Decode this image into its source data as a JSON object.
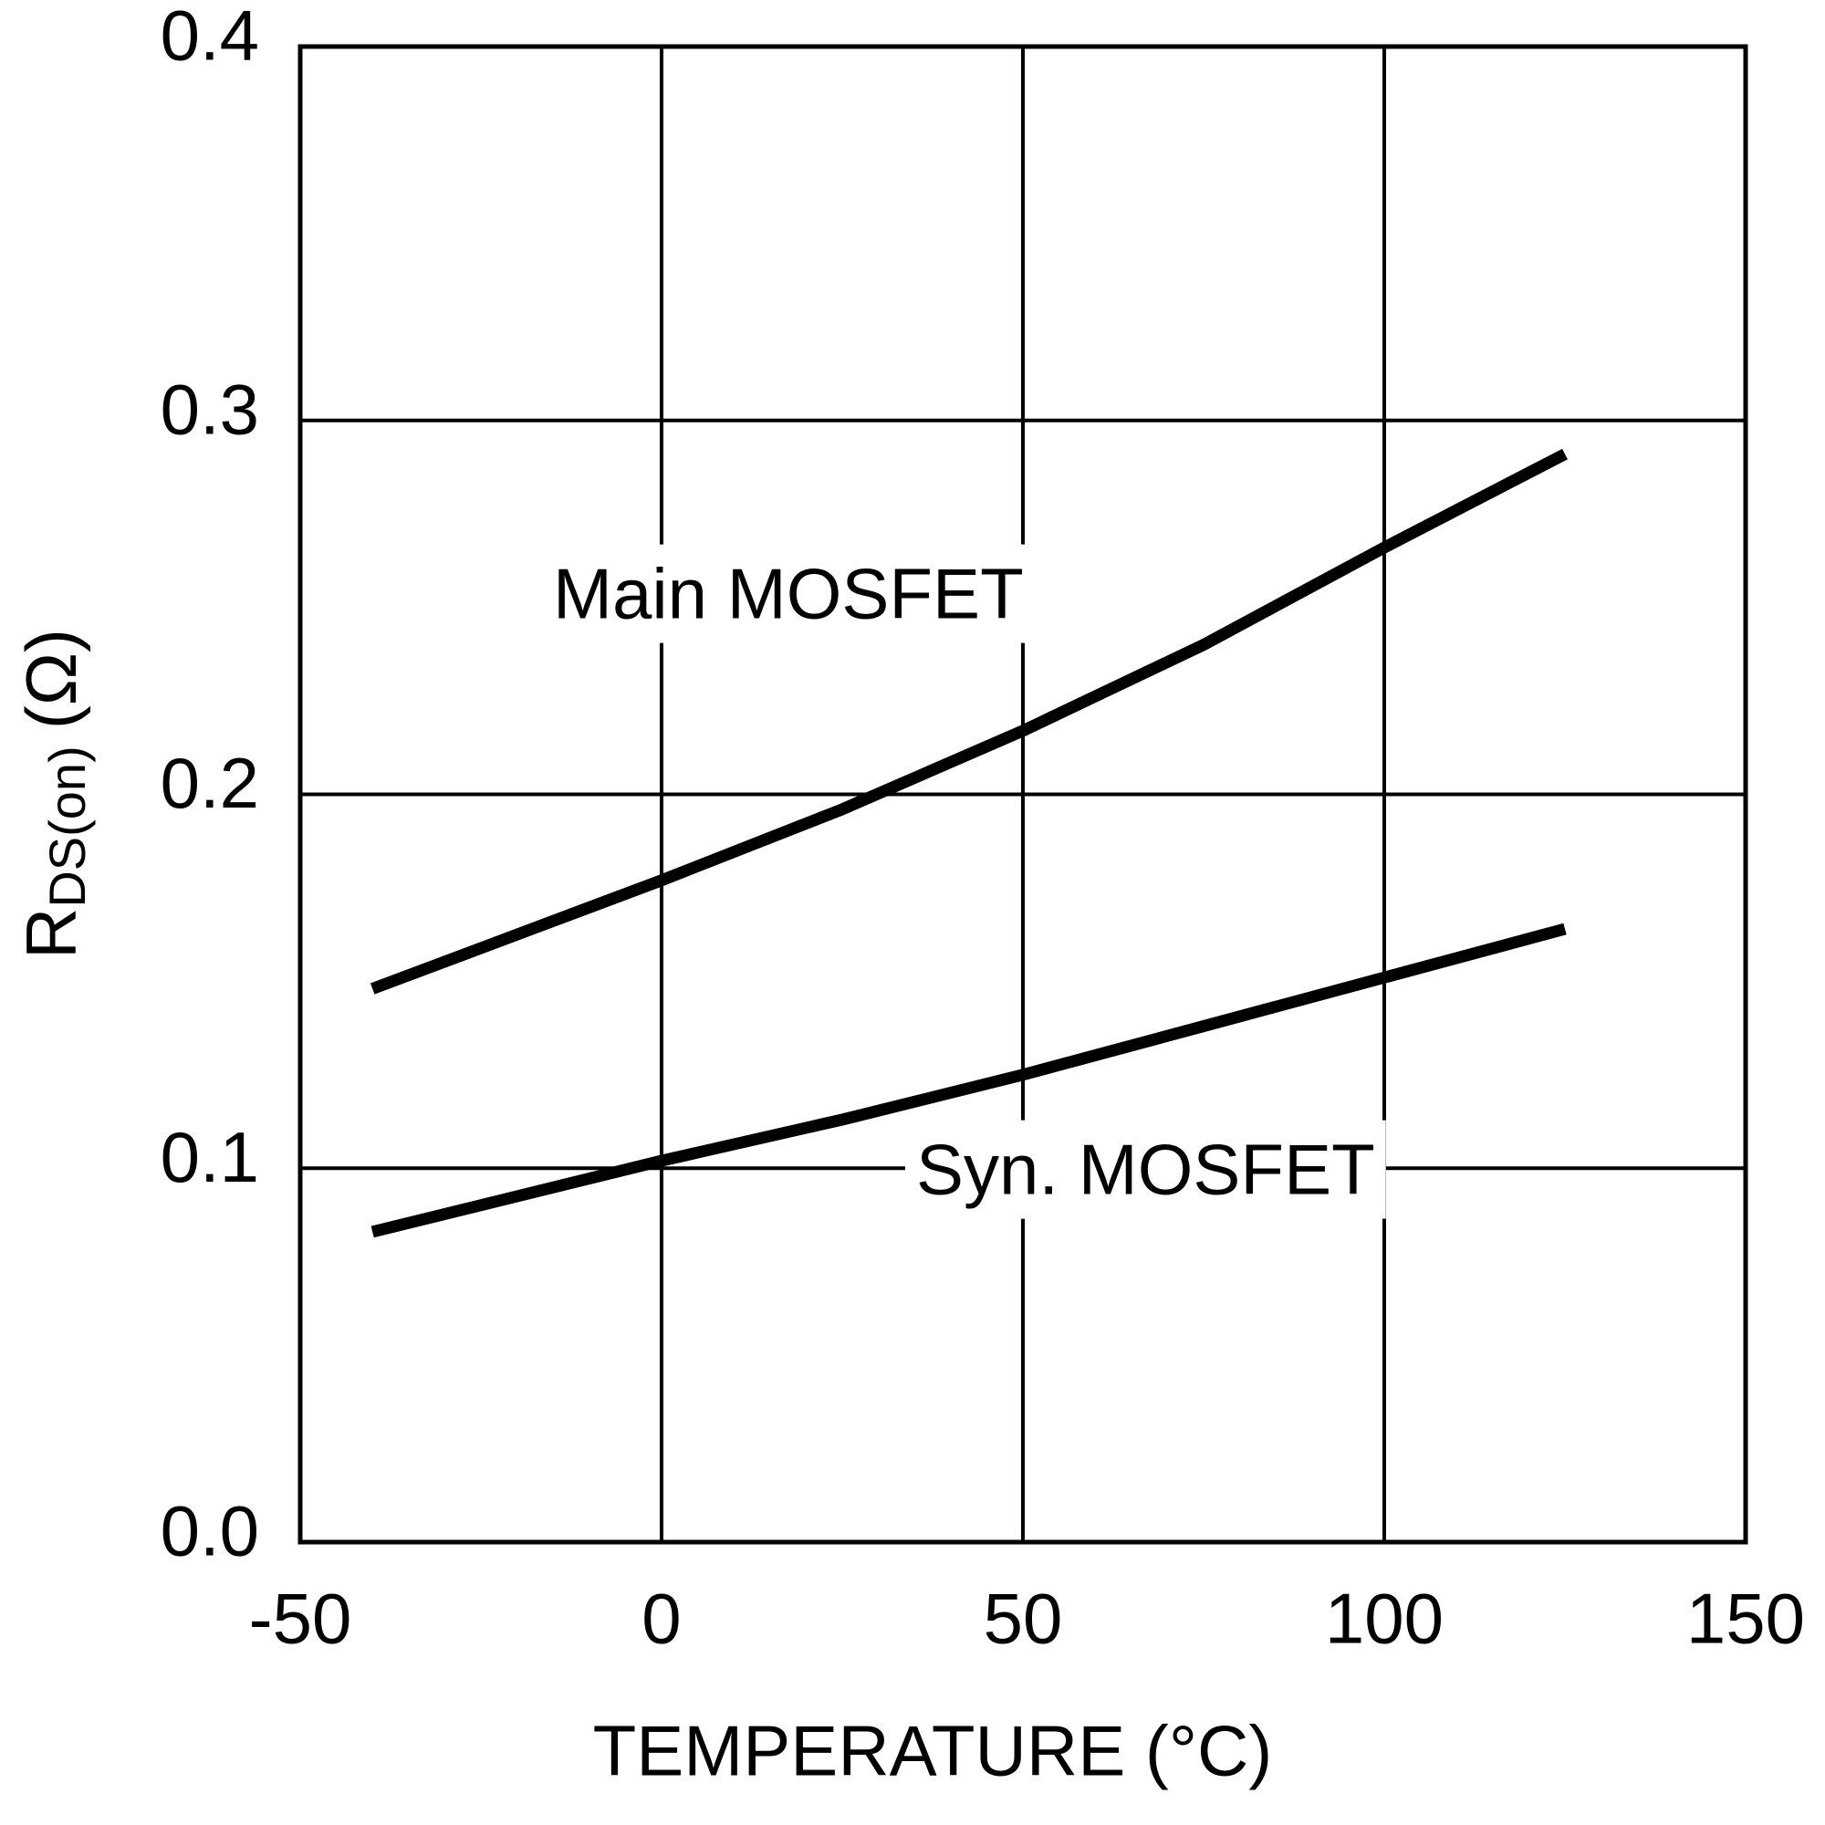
{
  "chart_data": {
    "type": "line",
    "x_label": "TEMPERATURE (°C)",
    "y_label": {
      "main": "R",
      "subscript": "DS(on)",
      "unit": "(Ω)"
    },
    "x": [
      -40,
      0,
      25,
      50,
      75,
      100,
      125
    ],
    "series": [
      {
        "name": "Main MOSFET",
        "color": "#000000",
        "values": [
          0.148,
          0.177,
          0.196,
          0.217,
          0.24,
          0.266,
          0.291
        ]
      },
      {
        "name": "Syn. MOSFET",
        "color": "#000000",
        "values": [
          0.083,
          0.102,
          0.113,
          0.125,
          0.138,
          0.151,
          0.164
        ]
      }
    ],
    "xlim": [
      -50,
      150
    ],
    "xticks": [
      -50,
      0,
      50,
      100,
      150
    ],
    "ylim": [
      0,
      0.4
    ],
    "yticks": [
      {
        "value": 0,
        "label": "0.0"
      },
      0.1,
      0.2,
      0.3,
      0.4
    ],
    "grid": true
  }
}
